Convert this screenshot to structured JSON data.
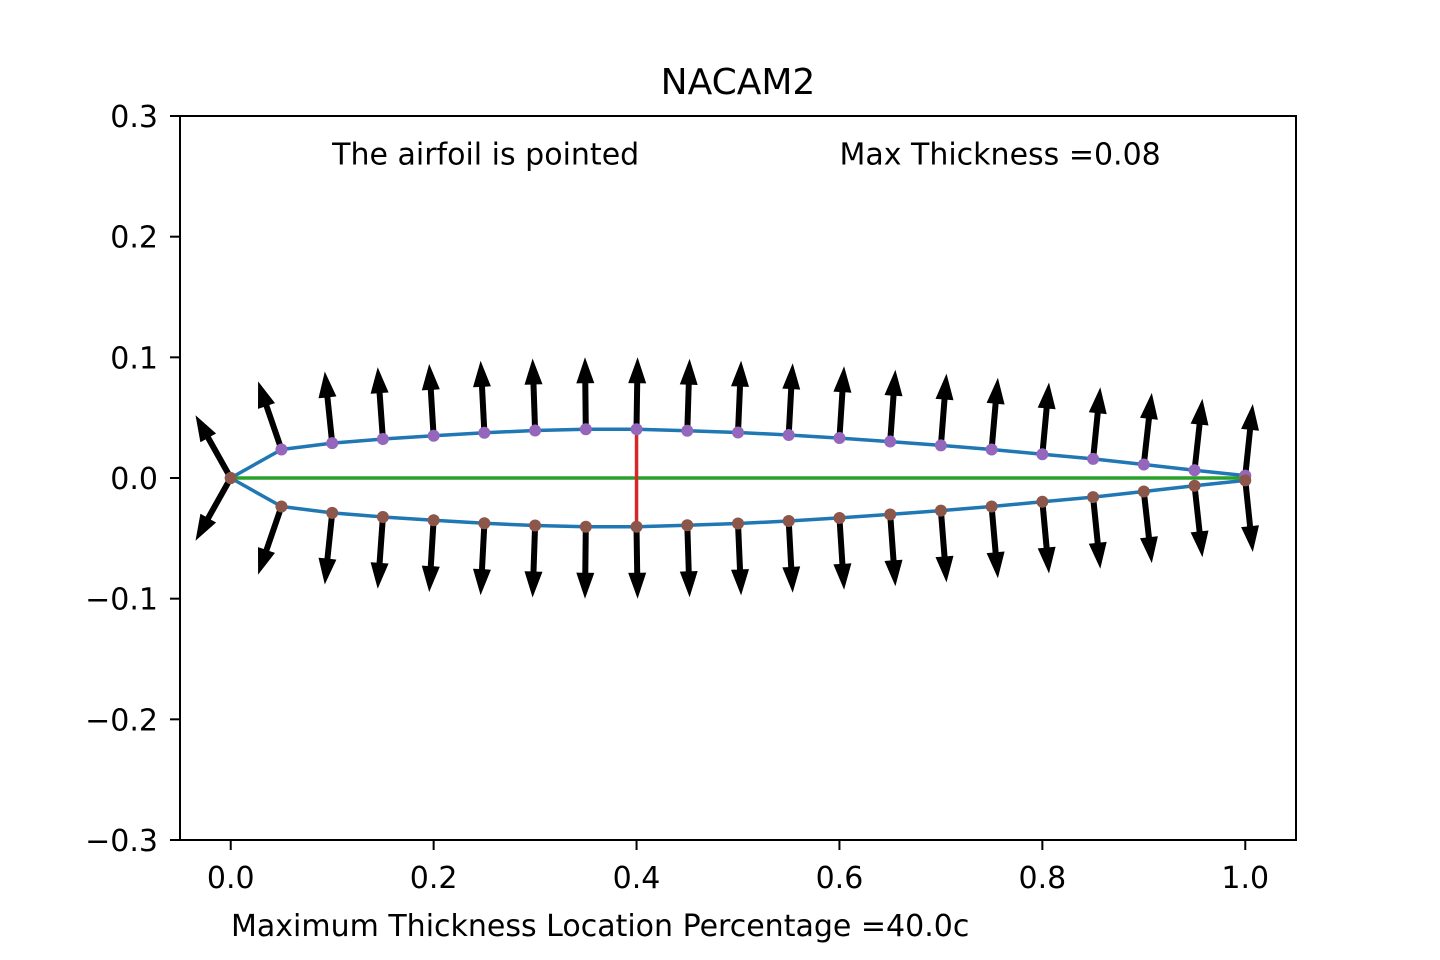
{
  "chart_data": {
    "type": "line",
    "title": "NACAM2",
    "xlabel": "Maximum Thickness Location Percentage =40.0c",
    "ylabel": "",
    "xlim": [
      -0.05,
      1.05
    ],
    "ylim": [
      -0.3,
      0.3
    ],
    "xticks": [
      0.0,
      0.2,
      0.4,
      0.6,
      0.8,
      1.0
    ],
    "xtick_labels": [
      "0.0",
      "0.2",
      "0.4",
      "0.6",
      "0.8",
      "1.0"
    ],
    "yticks": [
      0.3,
      0.2,
      0.1,
      0.0,
      -0.1,
      -0.2,
      -0.3
    ],
    "ytick_labels": [
      "0.3",
      "0.2",
      "0.1",
      "0.0",
      "−0.1",
      "−0.2",
      "−0.3"
    ],
    "grid": false,
    "annotations": [
      {
        "text": "The airfoil is pointed",
        "x": 0.1,
        "y": 0.26
      },
      {
        "text": "Max Thickness =0.08",
        "x": 0.6,
        "y": 0.26
      }
    ],
    "x": [
      0.0,
      0.05,
      0.1,
      0.15,
      0.2,
      0.25,
      0.3,
      0.35,
      0.4,
      0.45,
      0.5,
      0.55,
      0.6,
      0.65,
      0.7,
      0.75,
      0.8,
      0.85,
      0.9,
      0.95,
      1.0
    ],
    "series": [
      {
        "values": [
          0.0,
          0.0236,
          0.0289,
          0.0323,
          0.035,
          0.0375,
          0.0394,
          0.0404,
          0.0404,
          0.0392,
          0.0377,
          0.0356,
          0.0331,
          0.0302,
          0.027,
          0.0236,
          0.0197,
          0.0158,
          0.0112,
          0.0064,
          0.002
        ]
      },
      {
        "values": [
          0.0,
          -0.0236,
          -0.0289,
          -0.0323,
          -0.035,
          -0.0375,
          -0.0394,
          -0.0404,
          -0.0404,
          -0.0392,
          -0.0377,
          -0.0356,
          -0.0331,
          -0.0302,
          -0.027,
          -0.0236,
          -0.0197,
          -0.0158,
          -0.0112,
          -0.0064,
          -0.002
        ]
      },
      {
        "values": [
          0.0,
          0.0,
          0.0,
          0.0,
          0.0,
          0.0,
          0.0,
          0.0,
          0.0,
          0.0,
          0.0,
          0.0,
          0.0,
          0.0,
          0.0,
          0.0,
          0.0,
          0.0,
          0.0,
          0.0,
          0.0
        ]
      }
    ],
    "max_thickness_line": {
      "x": 0.4,
      "y": [
        -0.0404,
        0.0404
      ]
    },
    "colors": {
      "outline": "#1f77b4",
      "camber": "#2ca02c",
      "thickness": "#d62728",
      "upper_points": "#9467bd",
      "lower_points": "#8c564b",
      "arrows": "#000000"
    }
  }
}
